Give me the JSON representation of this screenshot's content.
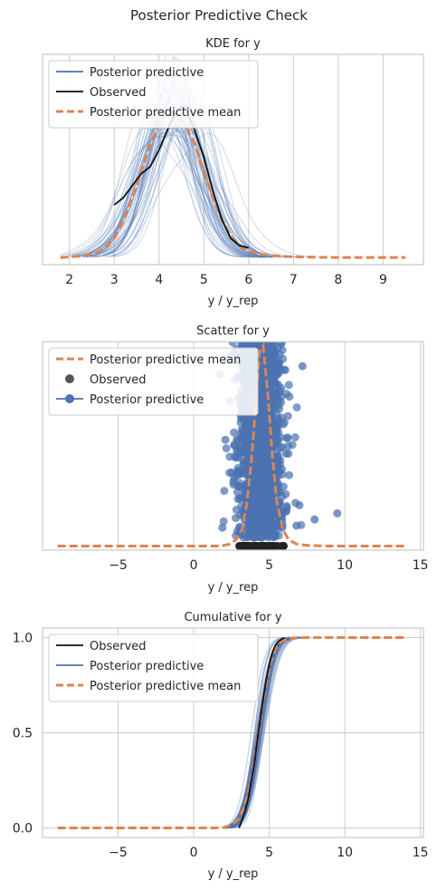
{
  "figure": {
    "suptitle": "Posterior Predictive Check"
  },
  "colors": {
    "posterior_predictive": "#4c72b0",
    "observed": "#111111",
    "ppc_mean": "#dd8452",
    "grid": "#cccccc",
    "frame": "#cccccc"
  },
  "chart_data": [
    {
      "type": "line",
      "title": "KDE for y",
      "xlabel": "y / y_rep",
      "ylabel": "",
      "xlim": [
        1.4,
        9.9
      ],
      "ylim": [
        -0.03,
        0.85
      ],
      "xticks": [
        2,
        3,
        4,
        5,
        6,
        7,
        8,
        9
      ],
      "yticks": [],
      "grid": "x",
      "legend": "top-left",
      "legend_entries": [
        "Posterior predictive",
        "Observed",
        "Posterior predictive mean"
      ],
      "observed": {
        "name": "Observed",
        "x": [
          3.0,
          3.2,
          3.4,
          3.6,
          3.8,
          4.0,
          4.2,
          4.35,
          4.5,
          4.6,
          4.8,
          5.0,
          5.2,
          5.4,
          5.6,
          5.8,
          6.0
        ],
        "y": [
          0.22,
          0.25,
          0.3,
          0.35,
          0.38,
          0.45,
          0.54,
          0.6,
          0.63,
          0.62,
          0.53,
          0.42,
          0.28,
          0.16,
          0.08,
          0.05,
          0.04
        ]
      },
      "ppc_mean": {
        "name": "Posterior predictive mean",
        "x": [
          1.8,
          2.2,
          2.6,
          2.8,
          3.0,
          3.2,
          3.4,
          3.6,
          3.8,
          4.0,
          4.2,
          4.4,
          4.6,
          4.8,
          5.0,
          5.2,
          5.4,
          5.6,
          5.8,
          6.0,
          6.4,
          6.8,
          7.2,
          8.0,
          9.0,
          9.5
        ],
        "y": [
          0.0,
          0.005,
          0.02,
          0.04,
          0.08,
          0.15,
          0.25,
          0.36,
          0.47,
          0.56,
          0.61,
          0.6,
          0.55,
          0.47,
          0.36,
          0.25,
          0.16,
          0.09,
          0.05,
          0.025,
          0.01,
          0.004,
          0.002,
          0.0,
          0.0,
          0.0
        ]
      },
      "posterior_predictive": {
        "name": "Posterior predictive",
        "draws": 60,
        "x_range": [
          1.8,
          9.5
        ],
        "mean_center": 4.35,
        "spread_sd": 0.62
      }
    },
    {
      "type": "scatter",
      "title": "Scatter for y",
      "xlabel": "y / y_rep",
      "ylabel": "",
      "xlim": [
        -10,
        15.2
      ],
      "ylim": [
        -0.02,
        1.0
      ],
      "xticks": [
        -5,
        0,
        5,
        10,
        15
      ],
      "tick_labels": [
        "−5",
        "0",
        "5",
        "10",
        "15"
      ],
      "yticks": [],
      "grid": "x",
      "legend": "top-left",
      "legend_entries": [
        "Posterior predictive mean",
        "Observed",
        "Posterior predictive"
      ],
      "ppc_mean": {
        "name": "Posterior predictive mean",
        "x": [
          -9,
          -6,
          -3,
          0,
          1.5,
          2.0,
          2.4,
          2.8,
          3.2,
          3.5,
          3.8,
          4.1,
          4.35,
          4.6,
          4.9,
          5.2,
          5.5,
          5.9,
          6.3,
          6.8,
          7.5,
          9,
          12,
          14
        ],
        "y": [
          0.0,
          0.0,
          0.0,
          0.0,
          0.0,
          0.003,
          0.01,
          0.03,
          0.08,
          0.2,
          0.4,
          0.68,
          0.95,
          0.98,
          0.75,
          0.45,
          0.22,
          0.08,
          0.03,
          0.01,
          0.003,
          0.0,
          0.0,
          0.0
        ]
      },
      "observed": {
        "name": "Observed",
        "x_range": [
          3.0,
          6.0
        ],
        "y": 0.0
      },
      "posterior_predictive": {
        "name": "Posterior predictive",
        "x_center": 4.4,
        "x_spread": 0.95,
        "outliers": [
          [
            9.5,
            0.16
          ],
          [
            8.0,
            0.13
          ],
          [
            7.2,
            0.88
          ],
          [
            7.0,
            0.2
          ],
          [
            6.8,
            0.1
          ],
          [
            1.9,
            0.09
          ],
          [
            2.1,
            0.52
          ]
        ]
      }
    },
    {
      "type": "line",
      "title": "Cumulative for y",
      "xlabel": "y / y_rep",
      "ylabel": "",
      "xlim": [
        -10,
        15.2
      ],
      "ylim": [
        -0.05,
        1.05
      ],
      "xticks": [
        -5,
        0,
        5,
        10,
        15
      ],
      "tick_labels": [
        "−5",
        "0",
        "5",
        "10",
        "15"
      ],
      "yticks": [
        0.0,
        0.5,
        1.0
      ],
      "ytick_labels": [
        "0.0",
        "0.5",
        "1.0"
      ],
      "grid": "both",
      "legend": "top-left",
      "legend_entries": [
        "Observed",
        "Posterior predictive",
        "Posterior predictive mean"
      ],
      "observed": {
        "name": "Observed",
        "x": [
          3.0,
          3.2,
          3.4,
          3.6,
          3.8,
          4.0,
          4.2,
          4.4,
          4.6,
          4.8,
          5.0,
          5.2,
          5.4,
          5.6,
          5.8,
          6.0
        ],
        "y": [
          0.0,
          0.04,
          0.09,
          0.15,
          0.24,
          0.33,
          0.45,
          0.57,
          0.68,
          0.78,
          0.86,
          0.92,
          0.96,
          0.98,
          0.99,
          1.0
        ]
      },
      "ppc_mean": {
        "name": "Posterior predictive mean",
        "x": [
          -9,
          0,
          1.5,
          2.0,
          2.5,
          3.0,
          3.3,
          3.6,
          3.9,
          4.2,
          4.5,
          4.8,
          5.1,
          5.4,
          5.8,
          6.3,
          7.0,
          9,
          14
        ],
        "y": [
          0.0,
          0.0,
          0.0,
          0.003,
          0.015,
          0.05,
          0.1,
          0.18,
          0.3,
          0.45,
          0.62,
          0.76,
          0.87,
          0.94,
          0.98,
          0.995,
          1.0,
          1.0,
          1.0
        ]
      },
      "posterior_predictive": {
        "name": "Posterior predictive",
        "draws": 50,
        "center": 4.35,
        "sd": 0.75
      }
    }
  ]
}
